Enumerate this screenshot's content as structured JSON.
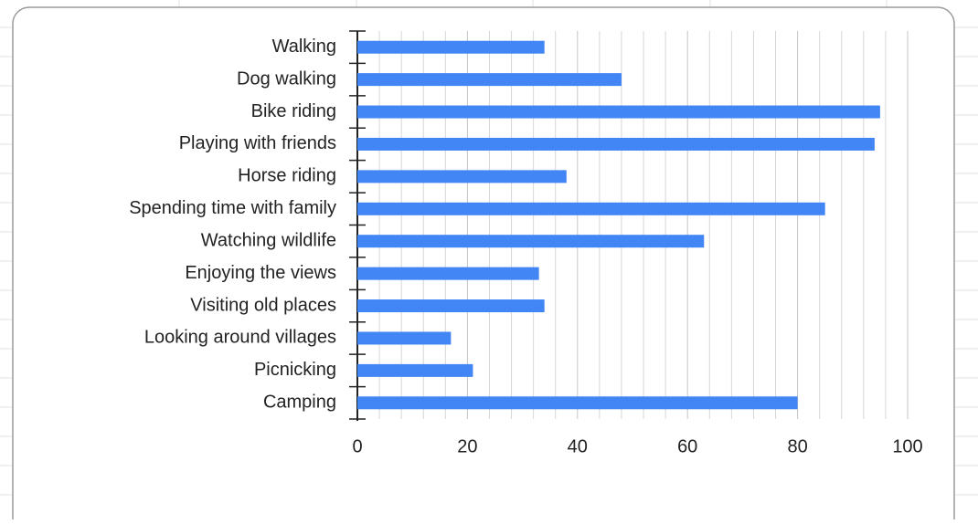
{
  "chart_data": {
    "type": "bar",
    "orientation": "horizontal",
    "categories": [
      "Walking",
      "Dog walking",
      "Bike riding",
      "Playing with friends",
      "Horse riding",
      "Spending time with family",
      "Watching wildlife",
      "Enjoying the views",
      "Visiting old places",
      "Looking around villages",
      "Picnicking",
      "Camping"
    ],
    "values": [
      34,
      48,
      95,
      94,
      38,
      85,
      63,
      33,
      34,
      17,
      21,
      80
    ],
    "color": "#4285f4",
    "xlim": [
      0,
      100
    ],
    "xticks": [
      0,
      20,
      40,
      60,
      80,
      100
    ],
    "minor_xticks": [
      4,
      8,
      12,
      16,
      24,
      28,
      32,
      36,
      44,
      48,
      52,
      56,
      64,
      68,
      72,
      76,
      84,
      88,
      92,
      96
    ],
    "grid": true
  }
}
